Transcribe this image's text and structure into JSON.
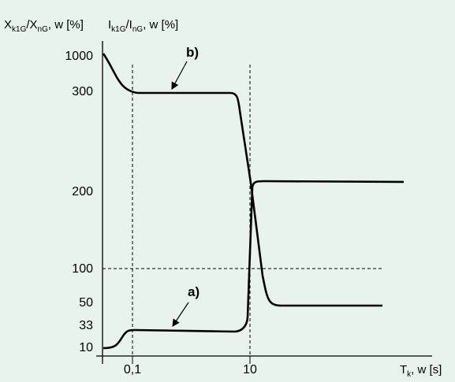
{
  "chart_data": {
    "type": "line",
    "y_axis_left_label": {
      "main": "X",
      "sub": "k1G",
      "mid": "/X",
      "sub2": "nG",
      "tail": ", w [%]"
    },
    "y_axis_right_label": {
      "main": "I",
      "sub": "k1G",
      "mid": "/I",
      "sub2": "nG",
      "tail": ", w [%]"
    },
    "x_axis_label": {
      "main": "T",
      "sub": "k",
      "tail": ", w [s]"
    },
    "y_ticks": [
      "1000",
      "300",
      "200",
      "100",
      "50",
      "33",
      "10"
    ],
    "x_ticks": [
      "0,1",
      "10"
    ],
    "reference_lines": {
      "x": [
        "0,1",
        "10"
      ],
      "y": [
        "100"
      ]
    },
    "series": [
      {
        "name": "b)",
        "points": [
          {
            "x": "start",
            "y": "1000"
          },
          {
            "x": "0,1",
            "y": "300"
          },
          {
            "x": "~8",
            "y": "300"
          },
          {
            "x": "10",
            "y": "~200"
          },
          {
            "x": "~12",
            "y": "50"
          },
          {
            "x": "end",
            "y": "50"
          }
        ]
      },
      {
        "name": "a)",
        "points": [
          {
            "x": "start",
            "y": "10"
          },
          {
            "x": "0,1",
            "y": "33"
          },
          {
            "x": "~8",
            "y": "33"
          },
          {
            "x": "10",
            "y": "~200"
          },
          {
            "x": "end",
            "y": "~200"
          }
        ]
      }
    ]
  }
}
